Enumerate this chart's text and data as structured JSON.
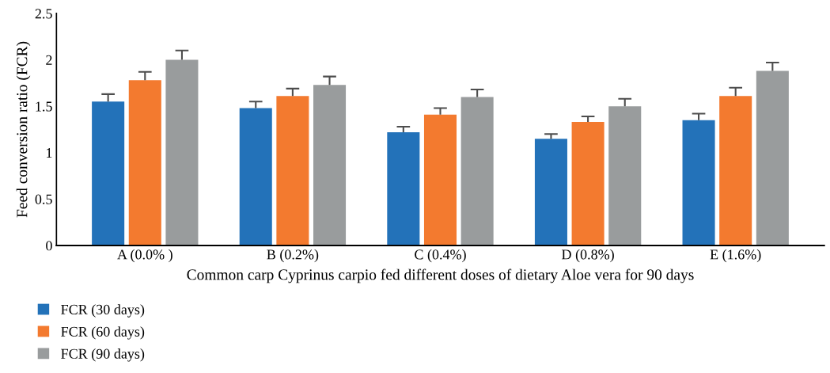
{
  "chart_data": {
    "type": "bar",
    "xlabel": "Common carp Cyprinus carpio fed different doses of dietary Aloe vera for 90 days",
    "ylabel": "Feed conversion ratio (FCR)",
    "categories": [
      "A (0.0% )",
      "B (0.2%)",
      "C (0.4%)",
      "D (0.8%)",
      "E (1.6%)"
    ],
    "series": [
      {
        "name": "FCR (30 days)",
        "color": "#2372b9",
        "values": [
          1.55,
          1.48,
          1.22,
          1.15,
          1.35
        ],
        "errors": [
          [
            1.55,
            1.63
          ],
          [
            1.48,
            1.55
          ],
          [
            1.22,
            1.28
          ],
          [
            1.15,
            1.2
          ],
          [
            1.35,
            1.42
          ]
        ]
      },
      {
        "name": "FCR (60 days)",
        "color": "#f37a2f",
        "values": [
          1.78,
          1.61,
          1.41,
          1.33,
          1.61
        ],
        "errors": [
          [
            1.78,
            1.87
          ],
          [
            1.61,
            1.69
          ],
          [
            1.41,
            1.48
          ],
          [
            1.33,
            1.39
          ],
          [
            1.61,
            1.7
          ]
        ]
      },
      {
        "name": "FCR (90 days)",
        "color": "#999c9d",
        "values": [
          2.0,
          1.73,
          1.6,
          1.5,
          1.88
        ],
        "errors": [
          [
            2.0,
            2.1
          ],
          [
            1.73,
            1.82
          ],
          [
            1.6,
            1.68
          ],
          [
            1.5,
            1.58
          ],
          [
            1.88,
            1.97
          ]
        ]
      }
    ],
    "ylim": [
      0,
      2.5
    ],
    "yticks": [
      0,
      0.5,
      1,
      1.5,
      2,
      2.5
    ],
    "grid": false,
    "legend": "bottom left"
  }
}
